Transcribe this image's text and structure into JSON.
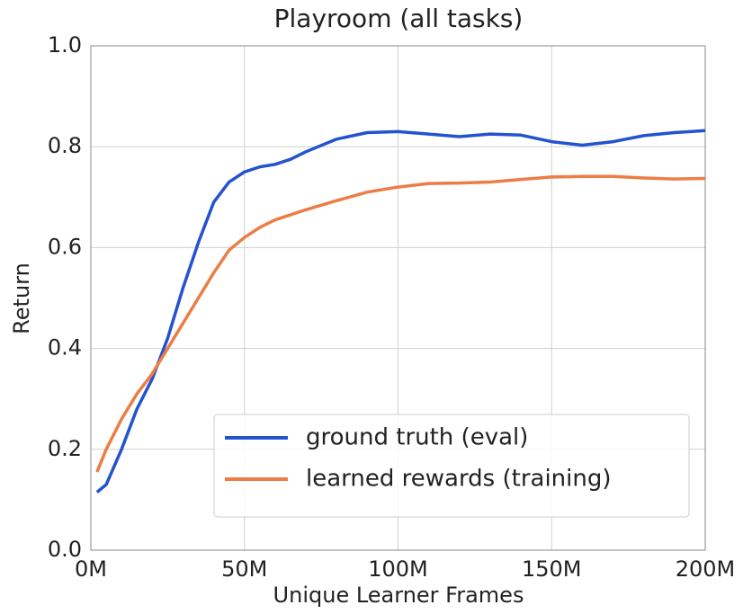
{
  "chart_data": {
    "type": "line",
    "title": "Playroom (all tasks)",
    "x_label": "Unique Learner Frames",
    "y_label": "Return",
    "x": [
      2000000,
      5000000,
      10000000,
      15000000,
      20000000,
      25000000,
      30000000,
      35000000,
      40000000,
      45000000,
      50000000,
      55000000,
      60000000,
      65000000,
      70000000,
      80000000,
      90000000,
      100000000,
      110000000,
      120000000,
      130000000,
      140000000,
      150000000,
      160000000,
      170000000,
      180000000,
      190000000,
      200000000
    ],
    "series": [
      {
        "name": "ground truth (eval)",
        "color": "#2453d0",
        "values": [
          0.115,
          0.13,
          0.2,
          0.28,
          0.34,
          0.42,
          0.52,
          0.61,
          0.69,
          0.73,
          0.75,
          0.76,
          0.765,
          0.775,
          0.79,
          0.815,
          0.828,
          0.83,
          0.825,
          0.82,
          0.825,
          0.823,
          0.81,
          0.803,
          0.81,
          0.822,
          0.828,
          0.832
        ]
      },
      {
        "name": "learned rewards (training)",
        "color": "#ec7d45",
        "values": [
          0.155,
          0.2,
          0.26,
          0.31,
          0.35,
          0.4,
          0.45,
          0.5,
          0.55,
          0.595,
          0.62,
          0.64,
          0.655,
          0.665,
          0.675,
          0.693,
          0.71,
          0.72,
          0.727,
          0.728,
          0.73,
          0.735,
          0.74,
          0.741,
          0.741,
          0.738,
          0.736,
          0.737
        ]
      }
    ],
    "xlim": [
      0,
      200000000
    ],
    "xticks": [
      {
        "value": 0,
        "label": "0M"
      },
      {
        "value": 50000000,
        "label": "50M"
      },
      {
        "value": 100000000,
        "label": "100M"
      },
      {
        "value": 150000000,
        "label": "150M"
      },
      {
        "value": 200000000,
        "label": "200M"
      }
    ],
    "ylim": [
      0,
      1
    ],
    "yticks": [
      {
        "value": 0,
        "label": "0.0"
      },
      0.2,
      0.4,
      0.6,
      0.8,
      {
        "value": 1,
        "label": "1.0"
      }
    ],
    "grid": true,
    "legend": "lower right"
  }
}
